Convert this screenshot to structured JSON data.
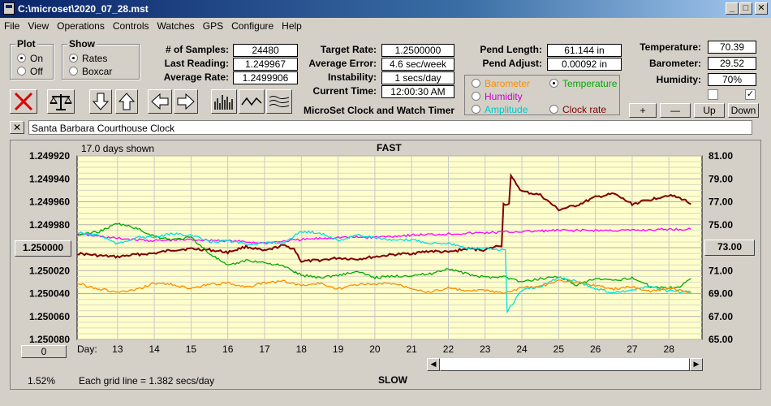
{
  "window": {
    "title": "C:\\microset\\2020_07_28.mst",
    "minimize": "_",
    "maximize": "□",
    "close": "✕"
  },
  "menu": [
    "File",
    "View",
    "Operations",
    "Controls",
    "Watches",
    "GPS",
    "Configure",
    "Help"
  ],
  "plot": {
    "legend": "Plot",
    "on": "On",
    "off": "Off",
    "selected": "On"
  },
  "show": {
    "legend": "Show",
    "rates": "Rates",
    "boxcar": "Boxcar",
    "selected": "Rates"
  },
  "stats": {
    "samples_label": "# of Samples:",
    "samples": "24480",
    "last_label": "Last Reading:",
    "last": "1.249967",
    "avg_label": "Average Rate:",
    "avg": "1.2499906"
  },
  "rate": {
    "target_label": "Target Rate:",
    "target": "1.2500000",
    "error_label": "Average Error:",
    "error": "4.6 sec/week",
    "instab_label": "Instability:",
    "instab": "1 secs/day",
    "time_label": "Current Time:",
    "time": "12:00:30 AM",
    "product": "MicroSet Clock and Watch Timer"
  },
  "pend": {
    "length_label": "Pend Length:",
    "length": "61.144 in",
    "adjust_label": "Pend Adjust:",
    "adjust": "0.00092 in"
  },
  "sensor_select": {
    "barometer": "Barometer",
    "temperature": "Temperature",
    "humidity": "Humidity",
    "amplitude": "Amplitude",
    "clock_rate": "Clock rate",
    "selected": "Temperature"
  },
  "env": {
    "temp_label": "Temperature:",
    "temp": "70.39",
    "baro_label": "Barometer:",
    "baro": "29.52",
    "hum_label": "Humidity:",
    "hum": "70%"
  },
  "adjust_buttons": {
    "plus": "+",
    "minus": "—",
    "up": "Up",
    "down": "Down"
  },
  "description": {
    "clear": "✕",
    "text": "Santa Barbara Courthouse Clock"
  },
  "chart": {
    "days_shown": "17.0 days shown",
    "top_label": "FAST",
    "bottom_label": "SLOW",
    "grid_note": "Each grid line = 1.382 secs/day",
    "percent": "1.52%",
    "day_label": "Day:",
    "left_center_button": "1.250000",
    "right_center_button": "73.00",
    "left_bottom_button": "0"
  },
  "colors": {
    "barometer": "#ff8c00",
    "temperature": "#00aa00",
    "humidity": "#ff00ff",
    "amplitude": "#00e0e0",
    "clock_rate": "#800000",
    "plot_bg": "#ffffcc"
  },
  "chart_data": {
    "type": "line",
    "x_ticks": [
      13,
      14,
      15,
      16,
      17,
      18,
      19,
      20,
      21,
      22,
      23,
      24,
      25,
      26,
      27,
      28
    ],
    "xlim": [
      11.9,
      28.9
    ],
    "left_axis": {
      "ticks": [
        "1.249920",
        "1.249940",
        "1.249960",
        "1.249980",
        "1.250000",
        "1.250020",
        "1.250040",
        "1.250060",
        "1.250080"
      ],
      "ylim": [
        1.24992,
        1.25008
      ],
      "inverted": true
    },
    "right_axis": {
      "ticks": [
        "81.00",
        "79.00",
        "77.00",
        "75.00",
        "73.00",
        "71.00",
        "69.00",
        "67.00",
        "65.00"
      ],
      "ylim": [
        65,
        81
      ]
    },
    "grid": true,
    "series": [
      {
        "key": "clock_rate",
        "axis": "left",
        "points": [
          [
            11.9,
            1.250005
          ],
          [
            12.5,
            1.250007
          ],
          [
            13,
            1.250008
          ],
          [
            13.5,
            1.250006
          ],
          [
            14,
            1.250005
          ],
          [
            14.5,
            1.250002
          ],
          [
            15,
            1.250001
          ],
          [
            15.5,
            1.250002
          ],
          [
            16,
            1.250004
          ],
          [
            16.5,
            1.249999
          ],
          [
            17,
            1.250003
          ],
          [
            17.5,
            1.249998
          ],
          [
            17.8,
            1.250001
          ],
          [
            18,
            1.250012
          ],
          [
            18.5,
            1.250011
          ],
          [
            19,
            1.250009
          ],
          [
            19.5,
            1.25001
          ],
          [
            20,
            1.250008
          ],
          [
            20.5,
            1.250006
          ],
          [
            21,
            1.250005
          ],
          [
            21.5,
            1.250003
          ],
          [
            22,
            1.250004
          ],
          [
            22.5,
            1.250001
          ],
          [
            23,
            1.250002
          ],
          [
            23.4,
            1.249998
          ],
          [
            23.5,
            1.249962
          ],
          [
            23.7,
            1.249938
          ],
          [
            24,
            1.249951
          ],
          [
            24.5,
            1.249954
          ],
          [
            25,
            1.249967
          ],
          [
            25.5,
            1.249963
          ],
          [
            26,
            1.249956
          ],
          [
            26.5,
            1.249953
          ],
          [
            27,
            1.249962
          ],
          [
            27.5,
            1.249958
          ],
          [
            28,
            1.249954
          ],
          [
            28.4,
            1.249958
          ],
          [
            28.6,
            1.249962
          ]
        ]
      },
      {
        "key": "humidity",
        "axis": "right",
        "points": [
          [
            11.9,
            74.2
          ],
          [
            13,
            73.8
          ],
          [
            14,
            73.6
          ],
          [
            15,
            73.7
          ],
          [
            16,
            73.6
          ],
          [
            17,
            73.4
          ],
          [
            18,
            73.7
          ],
          [
            19,
            73.9
          ],
          [
            20,
            73.9
          ],
          [
            21,
            74.1
          ],
          [
            22,
            74.2
          ],
          [
            23,
            74.3
          ],
          [
            24,
            74.4
          ],
          [
            25,
            74.5
          ],
          [
            26,
            74.5
          ],
          [
            27,
            74.5
          ],
          [
            28,
            74.6
          ],
          [
            28.6,
            74.6
          ]
        ]
      },
      {
        "key": "temperature",
        "axis": "right",
        "points": [
          [
            11.9,
            74.1
          ],
          [
            12.5,
            74.4
          ],
          [
            13,
            75.1
          ],
          [
            13.5,
            74.7
          ],
          [
            14,
            74.0
          ],
          [
            14.5,
            73.7
          ],
          [
            15,
            73.9
          ],
          [
            15.5,
            72.5
          ],
          [
            16,
            71.4
          ],
          [
            16.5,
            71.9
          ],
          [
            17,
            71.7
          ],
          [
            17.5,
            71.4
          ],
          [
            18,
            70.6
          ],
          [
            18.5,
            70.4
          ],
          [
            19,
            70.6
          ],
          [
            19.5,
            70.9
          ],
          [
            20,
            70.4
          ],
          [
            20.5,
            70.5
          ],
          [
            21,
            70.6
          ],
          [
            21.5,
            70.7
          ],
          [
            22,
            71.2
          ],
          [
            22.5,
            70.7
          ],
          [
            23,
            70.4
          ],
          [
            23.5,
            70.5
          ],
          [
            24,
            70.0
          ],
          [
            24.5,
            70.3
          ],
          [
            25,
            70.5
          ],
          [
            25.5,
            69.7
          ],
          [
            26,
            70.3
          ],
          [
            26.5,
            70.1
          ],
          [
            27,
            70.4
          ],
          [
            27.5,
            69.6
          ],
          [
            28,
            69.5
          ],
          [
            28.3,
            69.6
          ],
          [
            28.6,
            70.3
          ]
        ]
      },
      {
        "key": "amplitude",
        "axis": "right",
        "points": [
          [
            11.9,
            74.3
          ],
          [
            12.5,
            74.1
          ],
          [
            13,
            73.3
          ],
          [
            13.5,
            73.9
          ],
          [
            14,
            73.9
          ],
          [
            14.5,
            74.2
          ],
          [
            15,
            74.1
          ],
          [
            15.5,
            73.5
          ],
          [
            16,
            73.6
          ],
          [
            16.5,
            73.3
          ],
          [
            17,
            73.4
          ],
          [
            17.5,
            73.4
          ],
          [
            18,
            74.4
          ],
          [
            18.5,
            74.3
          ],
          [
            19,
            73.6
          ],
          [
            19.5,
            74.1
          ],
          [
            20,
            73.9
          ],
          [
            20.5,
            73.6
          ],
          [
            21,
            73.7
          ],
          [
            21.5,
            73.4
          ],
          [
            22,
            73.4
          ],
          [
            22.5,
            72.9
          ],
          [
            23,
            73.0
          ],
          [
            23.4,
            72.8
          ],
          [
            23.6,
            67.4
          ],
          [
            24,
            69.3
          ],
          [
            24.5,
            69.6
          ],
          [
            25,
            70.4
          ],
          [
            25.5,
            70.1
          ],
          [
            26,
            69.4
          ],
          [
            26.5,
            69.1
          ],
          [
            27,
            69.3
          ],
          [
            27.5,
            69.6
          ],
          [
            28,
            69.2
          ],
          [
            28.6,
            69.1
          ]
        ]
      },
      {
        "key": "barometer",
        "axis": "right",
        "points": [
          [
            11.9,
            69.9
          ],
          [
            12.5,
            69.4
          ],
          [
            13,
            69.1
          ],
          [
            13.5,
            69.3
          ],
          [
            14,
            69.9
          ],
          [
            14.5,
            69.8
          ],
          [
            15,
            69.4
          ],
          [
            15.5,
            69.8
          ],
          [
            16,
            69.9
          ],
          [
            16.5,
            69.6
          ],
          [
            17,
            69.9
          ],
          [
            17.5,
            70.1
          ],
          [
            18,
            69.7
          ],
          [
            18.5,
            69.9
          ],
          [
            19,
            69.4
          ],
          [
            19.5,
            69.8
          ],
          [
            20,
            69.8
          ],
          [
            20.5,
            69.9
          ],
          [
            21,
            69.5
          ],
          [
            21.5,
            69.1
          ],
          [
            22,
            69.5
          ],
          [
            22.5,
            69.2
          ],
          [
            23,
            69.3
          ],
          [
            23.5,
            69.0
          ],
          [
            24,
            69.5
          ],
          [
            24.5,
            69.6
          ],
          [
            25,
            70.1
          ],
          [
            25.5,
            70.0
          ],
          [
            26,
            69.7
          ],
          [
            26.5,
            69.4
          ],
          [
            27,
            69.6
          ],
          [
            27.5,
            69.2
          ],
          [
            28,
            69.5
          ],
          [
            28.6,
            69.1
          ]
        ]
      }
    ]
  }
}
